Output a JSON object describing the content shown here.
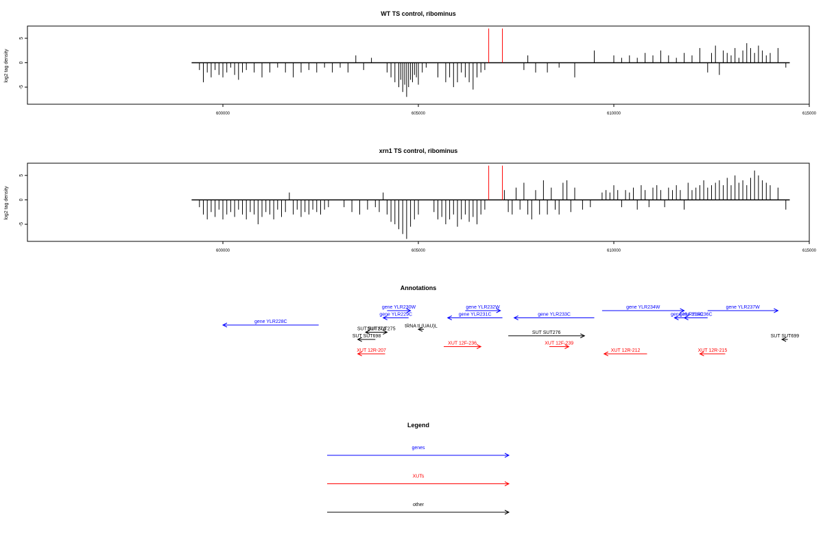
{
  "chart_data": [
    {
      "type": "bar",
      "title": "WT TS control, ribominus",
      "ylabel": "log2 tag density",
      "xlim": [
        595000,
        615000
      ],
      "ylim": [
        -8.5,
        7.5
      ],
      "x_ticks": [
        600000,
        605000,
        610000,
        615000
      ],
      "y_ticks": [
        -5,
        0,
        5
      ],
      "line_color": "#000000",
      "marker_color": "#ff0000",
      "markers_x": [
        606800,
        607150
      ],
      "markers_height": 7,
      "x": [
        599400,
        599500,
        599600,
        599700,
        599800,
        599900,
        600000,
        600100,
        600200,
        600300,
        600400,
        600500,
        600600,
        600800,
        601000,
        601200,
        601400,
        601600,
        601800,
        602000,
        602200,
        602400,
        602600,
        602800,
        603000,
        603200,
        603400,
        603600,
        603800,
        604200,
        604300,
        604400,
        604500,
        604550,
        604600,
        604650,
        604700,
        604750,
        604800,
        604850,
        604900,
        604950,
        605000,
        605100,
        605200,
        605500,
        605700,
        605800,
        605900,
        606000,
        606100,
        606200,
        606300,
        606400,
        606500,
        606600,
        606700,
        607700,
        607800,
        608000,
        608300,
        608600,
        609000,
        609500,
        610000,
        610200,
        610400,
        610600,
        610800,
        611000,
        611200,
        611400,
        611600,
        611800,
        612000,
        612200,
        612400,
        612500,
        612600,
        612700,
        612800,
        612900,
        613000,
        613100,
        613200,
        613300,
        613400,
        613500,
        613600,
        613700,
        613800,
        613900,
        614000,
        614200,
        614400
      ],
      "values": [
        -1.5,
        -4,
        -2,
        -3,
        -1.5,
        -2.5,
        -3,
        -2,
        -1,
        -2.5,
        -3.5,
        -2,
        -1.5,
        -2,
        -3,
        -2,
        -1,
        -2,
        -3,
        -2,
        -1.5,
        -2,
        -1,
        -2,
        -1,
        -2,
        1.5,
        -1.5,
        1,
        -2,
        -3,
        -4,
        -5,
        -3.5,
        -6,
        -4.5,
        -7,
        -5,
        -3.5,
        -4,
        -2.5,
        -3,
        -4.5,
        -2,
        -1,
        -3,
        -4,
        -3,
        -5,
        -4,
        -2,
        -3,
        -4,
        -5.5,
        -3,
        -2,
        -1.5,
        -1.5,
        1.5,
        -2,
        -2,
        -1,
        -3,
        2.5,
        1.5,
        1,
        1.5,
        1,
        2,
        1.5,
        2.5,
        1.5,
        1,
        2,
        1.5,
        3,
        -2,
        2,
        3.5,
        -2.5,
        2.5,
        2,
        1.5,
        3,
        1,
        2.5,
        4,
        3,
        2,
        3.5,
        2.5,
        1.5,
        2,
        3,
        -1
      ]
    },
    {
      "type": "bar",
      "title": "xrn1 TS control, ribominus",
      "ylabel": "log2 tag density",
      "xlim": [
        595000,
        615000
      ],
      "ylim": [
        -8.5,
        7.5
      ],
      "x_ticks": [
        600000,
        605000,
        610000,
        615000
      ],
      "y_ticks": [
        -5,
        0,
        5
      ],
      "line_color": "#000000",
      "marker_color": "#ff0000",
      "markers_x": [
        606800,
        607150
      ],
      "markers_height": 7,
      "x": [
        599400,
        599500,
        599600,
        599700,
        599800,
        599900,
        600000,
        600100,
        600200,
        600300,
        600400,
        600500,
        600600,
        600700,
        600800,
        600900,
        601000,
        601100,
        601200,
        601300,
        601400,
        601500,
        601600,
        601700,
        601800,
        601900,
        602000,
        602100,
        602200,
        602300,
        602400,
        602500,
        602600,
        602700,
        603100,
        603300,
        603500,
        603700,
        603900,
        604000,
        604100,
        604200,
        604300,
        604400,
        604500,
        604600,
        604700,
        604800,
        604900,
        605000,
        605400,
        605500,
        605600,
        605700,
        605800,
        605900,
        606000,
        606100,
        606200,
        606300,
        606400,
        606500,
        606600,
        606700,
        607200,
        607300,
        607400,
        607500,
        607600,
        607700,
        607800,
        607900,
        608000,
        608100,
        608200,
        608300,
        608400,
        608500,
        608600,
        608700,
        608800,
        608900,
        609000,
        609200,
        609400,
        609700,
        609800,
        609900,
        610000,
        610100,
        610200,
        610300,
        610400,
        610500,
        610600,
        610700,
        610800,
        610900,
        611000,
        611100,
        611200,
        611300,
        611400,
        611500,
        611600,
        611700,
        611800,
        611900,
        612000,
        612100,
        612200,
        612300,
        612400,
        612500,
        612600,
        612700,
        612800,
        612900,
        613000,
        613100,
        613200,
        613300,
        613400,
        613500,
        613600,
        613700,
        613800,
        613900,
        614000,
        614200,
        614400
      ],
      "values": [
        -1.5,
        -3,
        -4,
        -2.5,
        -3.5,
        -2,
        -4,
        -3,
        -2.5,
        -3.5,
        -2,
        -3,
        -4,
        -2.5,
        -3,
        -5,
        -3.5,
        -2.5,
        -3,
        -4,
        -2,
        -3.5,
        -2.5,
        1.5,
        -3,
        -2,
        -3.5,
        -2.5,
        -3,
        -2,
        -2.5,
        -3,
        -2,
        -1.5,
        -1.5,
        -2.5,
        -3,
        -2,
        -1.5,
        -2.5,
        1.5,
        -3,
        -4.5,
        -5,
        -6,
        -7,
        -8,
        -5.5,
        -4,
        -3,
        -2.5,
        -4,
        -3.5,
        -5,
        -4,
        -3,
        -5.5,
        -4,
        -3,
        -4.5,
        -3.5,
        -5,
        -3,
        -2,
        2,
        -2.5,
        -3,
        2.5,
        -2,
        3.5,
        -3,
        -4,
        2,
        -3,
        4,
        -3,
        2.5,
        -2,
        -3,
        3.5,
        4,
        -2.5,
        2.5,
        -2,
        -1.5,
        1.5,
        2,
        1.5,
        3,
        2,
        -1.5,
        2,
        1.5,
        2.5,
        -2,
        3,
        2,
        -1.5,
        2.5,
        3,
        2,
        -1.5,
        2.5,
        2,
        3,
        2,
        -2,
        3.5,
        2,
        2.5,
        3,
        4,
        2.5,
        3,
        3.5,
        4,
        3,
        4.5,
        3,
        5,
        3.5,
        4,
        3,
        4.5,
        6,
        5,
        4,
        3.5,
        3,
        2.5,
        -2
      ]
    }
  ],
  "annotations": {
    "title": "Annotations",
    "colors": {
      "gene": "#0000ff",
      "xut": "#ff0000",
      "other": "#000000"
    },
    "features": [
      {
        "label": "gene YLR228C",
        "category": "gene",
        "start": 600000,
        "end": 602450,
        "row": 2,
        "strand": "-"
      },
      {
        "label": "gene YLR230W",
        "category": "gene",
        "start": 604200,
        "end": 604800,
        "row": 0,
        "strand": "+"
      },
      {
        "label": "gene YLR229C",
        "category": "gene",
        "start": 604100,
        "end": 604750,
        "row": 1,
        "strand": "-"
      },
      {
        "label": "gene YLR232W",
        "category": "gene",
        "start": 606200,
        "end": 607100,
        "row": 0,
        "strand": "+"
      },
      {
        "label": "gene YLR231C",
        "category": "gene",
        "start": 605750,
        "end": 607150,
        "row": 1,
        "strand": "-"
      },
      {
        "label": "gene YLR233C",
        "category": "gene",
        "start": 607450,
        "end": 609500,
        "row": 1,
        "strand": "-"
      },
      {
        "label": "gene YLR234W",
        "category": "gene",
        "start": 609700,
        "end": 611800,
        "row": 0,
        "strand": "+"
      },
      {
        "label": "gene YLR235C",
        "category": "gene",
        "start": 611550,
        "end": 612200,
        "row": 1,
        "strand": "-"
      },
      {
        "label": "gene YLR236C",
        "category": "gene",
        "start": 611800,
        "end": 612400,
        "row": 1,
        "strand": "-"
      },
      {
        "label": "gene YLR237W",
        "category": "gene",
        "start": 612400,
        "end": 614200,
        "row": 0,
        "strand": "+"
      },
      {
        "label": "SUT SUT274",
        "category": "other",
        "start": 603650,
        "end": 603950,
        "row": 3,
        "strand": "-"
      },
      {
        "label": "SUT SUT275",
        "category": "other",
        "start": 603900,
        "end": 604200,
        "row": 3,
        "strand": "+"
      },
      {
        "label": "SUT SUT698",
        "category": "other",
        "start": 603450,
        "end": 603900,
        "row": 4,
        "strand": "-"
      },
      {
        "label": "tRNA tL(UAU)L",
        "category": "other",
        "start": 605000,
        "end": 605100,
        "row": 2.6,
        "strand": "-"
      },
      {
        "label": "SUT SUT276",
        "category": "other",
        "start": 607300,
        "end": 609250,
        "row": 3.5,
        "strand": "+"
      },
      {
        "label": "SUT SUT699",
        "category": "other",
        "start": 614300,
        "end": 614450,
        "row": 4,
        "strand": "-"
      },
      {
        "label": "XUT 12R-207",
        "category": "xut",
        "start": 603450,
        "end": 604150,
        "row": 6,
        "strand": "-"
      },
      {
        "label": "XUT 12F-236",
        "category": "xut",
        "start": 605650,
        "end": 606600,
        "row": 5,
        "strand": "+"
      },
      {
        "label": "XUT 12F-239",
        "category": "xut",
        "start": 608350,
        "end": 608850,
        "row": 5,
        "strand": "+"
      },
      {
        "label": "XUT 12R-212",
        "category": "xut",
        "start": 609750,
        "end": 610850,
        "row": 6,
        "strand": "-"
      },
      {
        "label": "XUT 12R-215",
        "category": "xut",
        "start": 612200,
        "end": 612850,
        "row": 6,
        "strand": "-"
      }
    ]
  },
  "legend": {
    "title": "Legend",
    "items": [
      {
        "label": "genes",
        "color": "#0000ff"
      },
      {
        "label": "XUTs",
        "color": "#ff0000"
      },
      {
        "label": "other",
        "color": "#000000"
      }
    ]
  }
}
